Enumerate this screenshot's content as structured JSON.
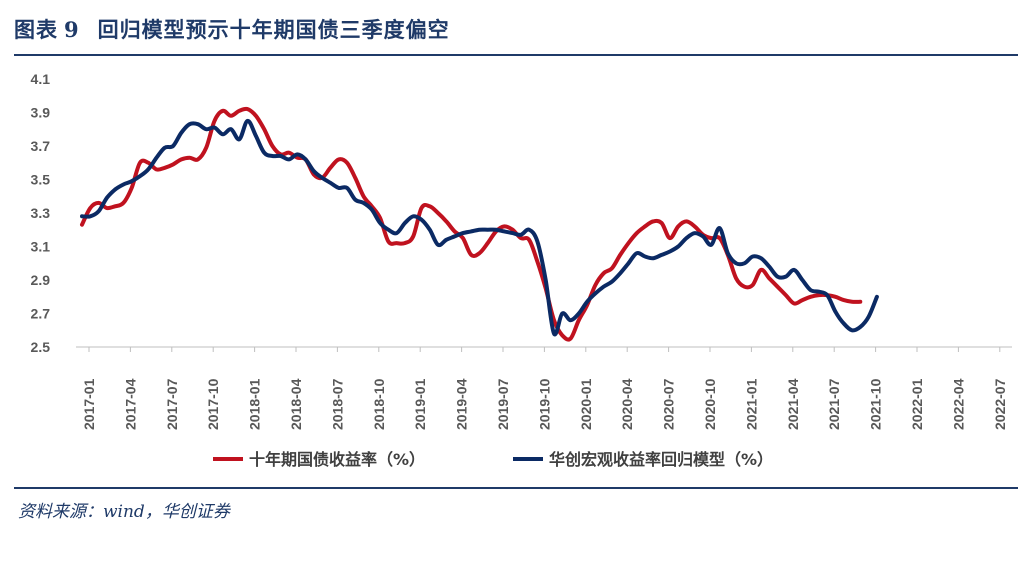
{
  "figure": {
    "label": "图表",
    "number": "9",
    "title": "回归模型预示十年期国债三季度偏空",
    "source": "资料来源：wind，华创证券"
  },
  "chart_data": {
    "type": "line",
    "x_ticks": [
      "2017-01",
      "2017-04",
      "2017-07",
      "2017-10",
      "2018-01",
      "2018-04",
      "2018-07",
      "2018-10",
      "2019-01",
      "2019-04",
      "2019-07",
      "2019-10",
      "2020-01",
      "2020-04",
      "2020-07",
      "2020-10",
      "2021-01",
      "2021-04",
      "2021-07",
      "2021-10",
      "2022-01",
      "2022-04",
      "2022-07"
    ],
    "y_ticks": [
      "2.5",
      "2.7",
      "2.9",
      "3.1",
      "3.3",
      "3.5",
      "3.7",
      "3.9",
      "4.1"
    ],
    "ylim": [
      2.5,
      4.1
    ],
    "grid": false,
    "legend_position": "bottom",
    "colors": {
      "series_0": "#c0121f",
      "series_1": "#0b2a64",
      "axis": "#bfbfbf"
    },
    "series": [
      {
        "name": "十年期国债收益率（%）",
        "points": [
          [
            0.0,
            3.23
          ],
          [
            0.2,
            3.33
          ],
          [
            0.4,
            3.36
          ],
          [
            0.6,
            3.33
          ],
          [
            0.8,
            3.34
          ],
          [
            1.0,
            3.36
          ],
          [
            1.2,
            3.45
          ],
          [
            1.4,
            3.6
          ],
          [
            1.6,
            3.6
          ],
          [
            1.8,
            3.56
          ],
          [
            2.0,
            3.57
          ],
          [
            2.2,
            3.59
          ],
          [
            2.4,
            3.62
          ],
          [
            2.6,
            3.63
          ],
          [
            2.8,
            3.62
          ],
          [
            3.0,
            3.69
          ],
          [
            3.2,
            3.85
          ],
          [
            3.4,
            3.91
          ],
          [
            3.6,
            3.88
          ],
          [
            3.8,
            3.91
          ],
          [
            4.0,
            3.92
          ],
          [
            4.2,
            3.88
          ],
          [
            4.4,
            3.8
          ],
          [
            4.6,
            3.7
          ],
          [
            4.8,
            3.65
          ],
          [
            5.0,
            3.66
          ],
          [
            5.2,
            3.63
          ],
          [
            5.4,
            3.62
          ],
          [
            5.6,
            3.53
          ],
          [
            5.8,
            3.51
          ],
          [
            6.0,
            3.57
          ],
          [
            6.2,
            3.62
          ],
          [
            6.4,
            3.6
          ],
          [
            6.6,
            3.51
          ],
          [
            6.8,
            3.4
          ],
          [
            7.0,
            3.34
          ],
          [
            7.2,
            3.27
          ],
          [
            7.4,
            3.13
          ],
          [
            7.6,
            3.12
          ],
          [
            7.8,
            3.12
          ],
          [
            8.0,
            3.16
          ],
          [
            8.2,
            3.33
          ],
          [
            8.4,
            3.34
          ],
          [
            8.6,
            3.3
          ],
          [
            8.8,
            3.25
          ],
          [
            9.0,
            3.19
          ],
          [
            9.2,
            3.15
          ],
          [
            9.4,
            3.05
          ],
          [
            9.6,
            3.06
          ],
          [
            9.8,
            3.12
          ],
          [
            10.0,
            3.19
          ],
          [
            10.2,
            3.22
          ],
          [
            10.4,
            3.2
          ],
          [
            10.6,
            3.15
          ],
          [
            10.8,
            3.14
          ],
          [
            11.0,
            3.01
          ],
          [
            11.2,
            2.85
          ],
          [
            11.4,
            2.66
          ],
          [
            11.6,
            2.57
          ],
          [
            11.8,
            2.55
          ],
          [
            12.0,
            2.66
          ],
          [
            12.2,
            2.75
          ],
          [
            12.4,
            2.87
          ],
          [
            12.6,
            2.94
          ],
          [
            12.8,
            2.97
          ],
          [
            13.0,
            3.05
          ],
          [
            13.2,
            3.12
          ],
          [
            13.4,
            3.18
          ],
          [
            13.6,
            3.22
          ],
          [
            13.8,
            3.25
          ],
          [
            14.0,
            3.24
          ],
          [
            14.2,
            3.15
          ],
          [
            14.4,
            3.22
          ],
          [
            14.6,
            3.25
          ],
          [
            14.8,
            3.22
          ],
          [
            15.0,
            3.17
          ],
          [
            15.2,
            3.15
          ],
          [
            15.4,
            3.15
          ],
          [
            15.6,
            3.05
          ],
          [
            15.8,
            2.91
          ],
          [
            16.0,
            2.86
          ],
          [
            16.2,
            2.87
          ],
          [
            16.4,
            2.96
          ],
          [
            16.6,
            2.91
          ],
          [
            16.8,
            2.86
          ],
          [
            17.0,
            2.81
          ],
          [
            17.2,
            2.76
          ],
          [
            17.4,
            2.78
          ],
          [
            17.6,
            2.8
          ],
          [
            17.8,
            2.81
          ],
          [
            18.0,
            2.81
          ],
          [
            18.2,
            2.8
          ],
          [
            18.4,
            2.78
          ],
          [
            18.6,
            2.77
          ],
          [
            18.8,
            2.77
          ]
        ]
      },
      {
        "name": "华创宏观收益率回归模型（%）",
        "points": [
          [
            0.0,
            3.28
          ],
          [
            0.2,
            3.28
          ],
          [
            0.4,
            3.31
          ],
          [
            0.6,
            3.39
          ],
          [
            0.8,
            3.44
          ],
          [
            1.0,
            3.47
          ],
          [
            1.2,
            3.49
          ],
          [
            1.4,
            3.52
          ],
          [
            1.6,
            3.56
          ],
          [
            1.8,
            3.63
          ],
          [
            2.0,
            3.69
          ],
          [
            2.2,
            3.7
          ],
          [
            2.4,
            3.78
          ],
          [
            2.6,
            3.83
          ],
          [
            2.8,
            3.83
          ],
          [
            3.0,
            3.8
          ],
          [
            3.2,
            3.81
          ],
          [
            3.4,
            3.77
          ],
          [
            3.6,
            3.8
          ],
          [
            3.8,
            3.74
          ],
          [
            4.0,
            3.85
          ],
          [
            4.2,
            3.76
          ],
          [
            4.4,
            3.66
          ],
          [
            4.6,
            3.64
          ],
          [
            4.8,
            3.64
          ],
          [
            5.0,
            3.62
          ],
          [
            5.2,
            3.65
          ],
          [
            5.4,
            3.62
          ],
          [
            5.6,
            3.55
          ],
          [
            5.8,
            3.51
          ],
          [
            6.0,
            3.48
          ],
          [
            6.2,
            3.45
          ],
          [
            6.4,
            3.45
          ],
          [
            6.6,
            3.38
          ],
          [
            6.8,
            3.36
          ],
          [
            7.0,
            3.32
          ],
          [
            7.2,
            3.24
          ],
          [
            7.4,
            3.2
          ],
          [
            7.6,
            3.18
          ],
          [
            7.8,
            3.24
          ],
          [
            8.0,
            3.28
          ],
          [
            8.2,
            3.26
          ],
          [
            8.4,
            3.2
          ],
          [
            8.6,
            3.11
          ],
          [
            8.8,
            3.14
          ],
          [
            9.0,
            3.16
          ],
          [
            9.2,
            3.18
          ],
          [
            9.4,
            3.19
          ],
          [
            9.6,
            3.2
          ],
          [
            9.8,
            3.2
          ],
          [
            10.0,
            3.2
          ],
          [
            10.2,
            3.19
          ],
          [
            10.4,
            3.18
          ],
          [
            10.6,
            3.17
          ],
          [
            10.8,
            3.2
          ],
          [
            11.0,
            3.13
          ],
          [
            11.2,
            2.9
          ],
          [
            11.4,
            2.58
          ],
          [
            11.6,
            2.7
          ],
          [
            11.8,
            2.66
          ],
          [
            12.0,
            2.7
          ],
          [
            12.2,
            2.77
          ],
          [
            12.4,
            2.82
          ],
          [
            12.6,
            2.86
          ],
          [
            12.8,
            2.89
          ],
          [
            13.0,
            2.94
          ],
          [
            13.2,
            3.0
          ],
          [
            13.4,
            3.06
          ],
          [
            13.6,
            3.04
          ],
          [
            13.8,
            3.03
          ],
          [
            14.0,
            3.05
          ],
          [
            14.2,
            3.07
          ],
          [
            14.4,
            3.1
          ],
          [
            14.6,
            3.15
          ],
          [
            14.8,
            3.18
          ],
          [
            15.0,
            3.16
          ],
          [
            15.2,
            3.11
          ],
          [
            15.4,
            3.21
          ],
          [
            15.6,
            3.06
          ],
          [
            15.8,
            3.0
          ],
          [
            16.0,
            3.0
          ],
          [
            16.2,
            3.04
          ],
          [
            16.4,
            3.03
          ],
          [
            16.6,
            2.98
          ],
          [
            16.8,
            2.92
          ],
          [
            17.0,
            2.92
          ],
          [
            17.2,
            2.96
          ],
          [
            17.4,
            2.9
          ],
          [
            17.6,
            2.84
          ],
          [
            17.8,
            2.83
          ],
          [
            18.0,
            2.81
          ],
          [
            18.2,
            2.71
          ],
          [
            18.4,
            2.64
          ],
          [
            18.6,
            2.6
          ],
          [
            18.8,
            2.62
          ],
          [
            19.0,
            2.68
          ],
          [
            19.2,
            2.8
          ]
        ]
      }
    ]
  }
}
